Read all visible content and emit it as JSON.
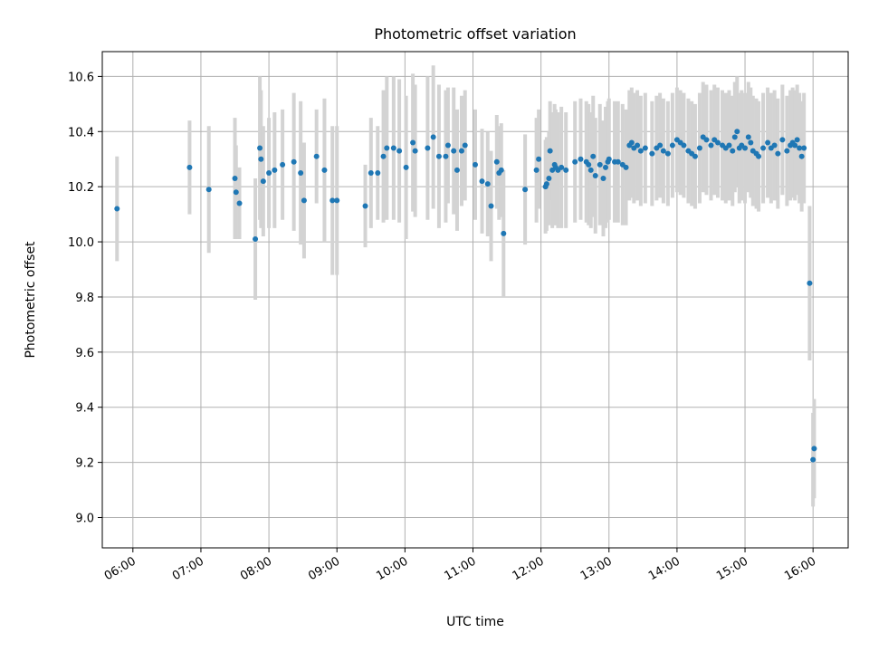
{
  "chart_data": {
    "type": "scatter",
    "title": "Photometric offset variation",
    "xlabel": "UTC time",
    "ylabel": "Photometric offset",
    "x_tick_labels": [
      "06:00",
      "07:00",
      "08:00",
      "09:00",
      "10:00",
      "11:00",
      "12:00",
      "13:00",
      "14:00",
      "15:00",
      "16:00"
    ],
    "y_ticks": [
      9.0,
      9.2,
      9.4,
      9.6,
      9.8,
      10.0,
      10.2,
      10.4,
      10.6
    ],
    "y_tick_labels": [
      "9.0",
      "9.2",
      "9.4",
      "9.6",
      "9.8",
      "10.0",
      "10.2",
      "10.4",
      "10.6"
    ],
    "xlim": [
      "05:33",
      "16:31"
    ],
    "ylim": [
      8.89,
      10.69
    ],
    "grid": true,
    "marker_color": "#1f77b4",
    "errorbar_color": "#d3d3d3",
    "series": [
      {
        "points": [
          [
            "05:46",
            10.12,
            0.19
          ],
          [
            "06:50",
            10.27,
            0.17
          ],
          [
            "07:07",
            10.19,
            0.23
          ],
          [
            "07:30",
            10.23,
            0.22
          ],
          [
            "07:31",
            10.18,
            0.17
          ],
          [
            "07:34",
            10.14,
            0.13
          ],
          [
            "07:48",
            10.01,
            0.22
          ],
          [
            "07:52",
            10.34,
            0.26
          ],
          [
            "07:53",
            10.3,
            0.25
          ],
          [
            "07:55",
            10.22,
            0.2
          ],
          [
            "08:00",
            10.25,
            0.2
          ],
          [
            "08:05",
            10.26,
            0.21
          ],
          [
            "08:12",
            10.28,
            0.2
          ],
          [
            "08:22",
            10.29,
            0.25
          ],
          [
            "08:28",
            10.25,
            0.26
          ],
          [
            "08:31",
            10.15,
            0.21
          ],
          [
            "08:42",
            10.31,
            0.17
          ],
          [
            "08:49",
            10.26,
            0.26
          ],
          [
            "08:56",
            10.15,
            0.27
          ],
          [
            "09:00",
            10.15,
            0.27
          ],
          [
            "09:25",
            10.13,
            0.15
          ],
          [
            "09:30",
            10.25,
            0.2
          ],
          [
            "09:36",
            10.25,
            0.17
          ],
          [
            "09:41",
            10.31,
            0.24
          ],
          [
            "09:44",
            10.34,
            0.26
          ],
          [
            "09:50",
            10.34,
            0.26
          ],
          [
            "09:55",
            10.33,
            0.26
          ],
          [
            "10:01",
            10.27,
            0.26
          ],
          [
            "10:07",
            10.36,
            0.25
          ],
          [
            "10:09",
            10.33,
            0.24
          ],
          [
            "10:20",
            10.34,
            0.26
          ],
          [
            "10:25",
            10.38,
            0.26
          ],
          [
            "10:30",
            10.31,
            0.26
          ],
          [
            "10:36",
            10.31,
            0.24
          ],
          [
            "10:38",
            10.35,
            0.21
          ],
          [
            "10:43",
            10.33,
            0.23
          ],
          [
            "10:46",
            10.26,
            0.22
          ],
          [
            "10:50",
            10.33,
            0.2
          ],
          [
            "10:53",
            10.35,
            0.2
          ],
          [
            "11:02",
            10.28,
            0.2
          ],
          [
            "11:08",
            10.22,
            0.19
          ],
          [
            "11:13",
            10.21,
            0.19
          ],
          [
            "11:16",
            10.13,
            0.2
          ],
          [
            "11:21",
            10.29,
            0.17
          ],
          [
            "11:23",
            10.25,
            0.17
          ],
          [
            "11:25",
            10.26,
            0.17
          ],
          [
            "11:27",
            10.03,
            0.23
          ],
          [
            "11:46",
            10.19,
            0.2
          ],
          [
            "11:56",
            10.26,
            0.19
          ],
          [
            "11:58",
            10.3,
            0.18
          ],
          [
            "12:04",
            10.2,
            0.17
          ],
          [
            "12:05",
            10.21,
            0.17
          ],
          [
            "12:07",
            10.23,
            0.17
          ],
          [
            "12:08",
            10.33,
            0.18
          ],
          [
            "12:10",
            10.26,
            0.21
          ],
          [
            "12:12",
            10.28,
            0.22
          ],
          [
            "12:13",
            10.27,
            0.21
          ],
          [
            "12:15",
            10.26,
            0.21
          ],
          [
            "12:18",
            10.27,
            0.22
          ],
          [
            "12:22",
            10.26,
            0.21
          ],
          [
            "12:30",
            10.29,
            0.22
          ],
          [
            "12:35",
            10.3,
            0.22
          ],
          [
            "12:40",
            10.29,
            0.22
          ],
          [
            "12:42",
            10.28,
            0.22
          ],
          [
            "12:44",
            10.26,
            0.21
          ],
          [
            "12:46",
            10.31,
            0.22
          ],
          [
            "12:48",
            10.24,
            0.21
          ],
          [
            "12:52",
            10.28,
            0.22
          ],
          [
            "12:55",
            10.23,
            0.21
          ],
          [
            "12:57",
            10.27,
            0.22
          ],
          [
            "12:59",
            10.29,
            0.22
          ],
          [
            "13:00",
            10.3,
            0.22
          ],
          [
            "13:05",
            10.29,
            0.22
          ],
          [
            "13:08",
            10.29,
            0.22
          ],
          [
            "13:12",
            10.28,
            0.22
          ],
          [
            "13:15",
            10.27,
            0.21
          ],
          [
            "13:18",
            10.35,
            0.2
          ],
          [
            "13:20",
            10.36,
            0.2
          ],
          [
            "13:22",
            10.34,
            0.2
          ],
          [
            "13:25",
            10.35,
            0.2
          ],
          [
            "13:28",
            10.33,
            0.2
          ],
          [
            "13:32",
            10.34,
            0.2
          ],
          [
            "13:38",
            10.32,
            0.19
          ],
          [
            "13:42",
            10.34,
            0.19
          ],
          [
            "13:45",
            10.35,
            0.19
          ],
          [
            "13:48",
            10.33,
            0.19
          ],
          [
            "13:52",
            10.32,
            0.19
          ],
          [
            "13:56",
            10.35,
            0.19
          ],
          [
            "14:00",
            10.37,
            0.19
          ],
          [
            "14:03",
            10.36,
            0.19
          ],
          [
            "14:06",
            10.35,
            0.19
          ],
          [
            "14:10",
            10.33,
            0.19
          ],
          [
            "14:13",
            10.32,
            0.19
          ],
          [
            "14:16",
            10.31,
            0.19
          ],
          [
            "14:20",
            10.34,
            0.2
          ],
          [
            "14:23",
            10.38,
            0.2
          ],
          [
            "14:26",
            10.37,
            0.2
          ],
          [
            "14:30",
            10.35,
            0.2
          ],
          [
            "14:33",
            10.37,
            0.2
          ],
          [
            "14:36",
            10.36,
            0.2
          ],
          [
            "14:40",
            10.35,
            0.2
          ],
          [
            "14:43",
            10.34,
            0.2
          ],
          [
            "14:46",
            10.35,
            0.2
          ],
          [
            "14:49",
            10.33,
            0.2
          ],
          [
            "14:51",
            10.38,
            0.2
          ],
          [
            "14:53",
            10.4,
            0.2
          ],
          [
            "14:55",
            10.34,
            0.2
          ],
          [
            "14:57",
            10.35,
            0.2
          ],
          [
            "15:00",
            10.34,
            0.2
          ],
          [
            "15:03",
            10.38,
            0.2
          ],
          [
            "15:05",
            10.36,
            0.2
          ],
          [
            "15:07",
            10.33,
            0.2
          ],
          [
            "15:10",
            10.32,
            0.2
          ],
          [
            "15:12",
            10.31,
            0.2
          ],
          [
            "15:16",
            10.34,
            0.2
          ],
          [
            "15:20",
            10.36,
            0.2
          ],
          [
            "15:23",
            10.34,
            0.2
          ],
          [
            "15:26",
            10.35,
            0.2
          ],
          [
            "15:29",
            10.32,
            0.2
          ],
          [
            "15:33",
            10.37,
            0.2
          ],
          [
            "15:37",
            10.33,
            0.2
          ],
          [
            "15:40",
            10.35,
            0.2
          ],
          [
            "15:42",
            10.36,
            0.2
          ],
          [
            "15:44",
            10.35,
            0.2
          ],
          [
            "15:46",
            10.37,
            0.2
          ],
          [
            "15:48",
            10.34,
            0.2
          ],
          [
            "15:50",
            10.31,
            0.2
          ],
          [
            "15:52",
            10.34,
            0.2
          ],
          [
            "15:57",
            9.85,
            0.28
          ],
          [
            "16:00",
            9.21,
            0.17
          ],
          [
            "16:01",
            9.25,
            0.18
          ]
        ]
      }
    ]
  }
}
